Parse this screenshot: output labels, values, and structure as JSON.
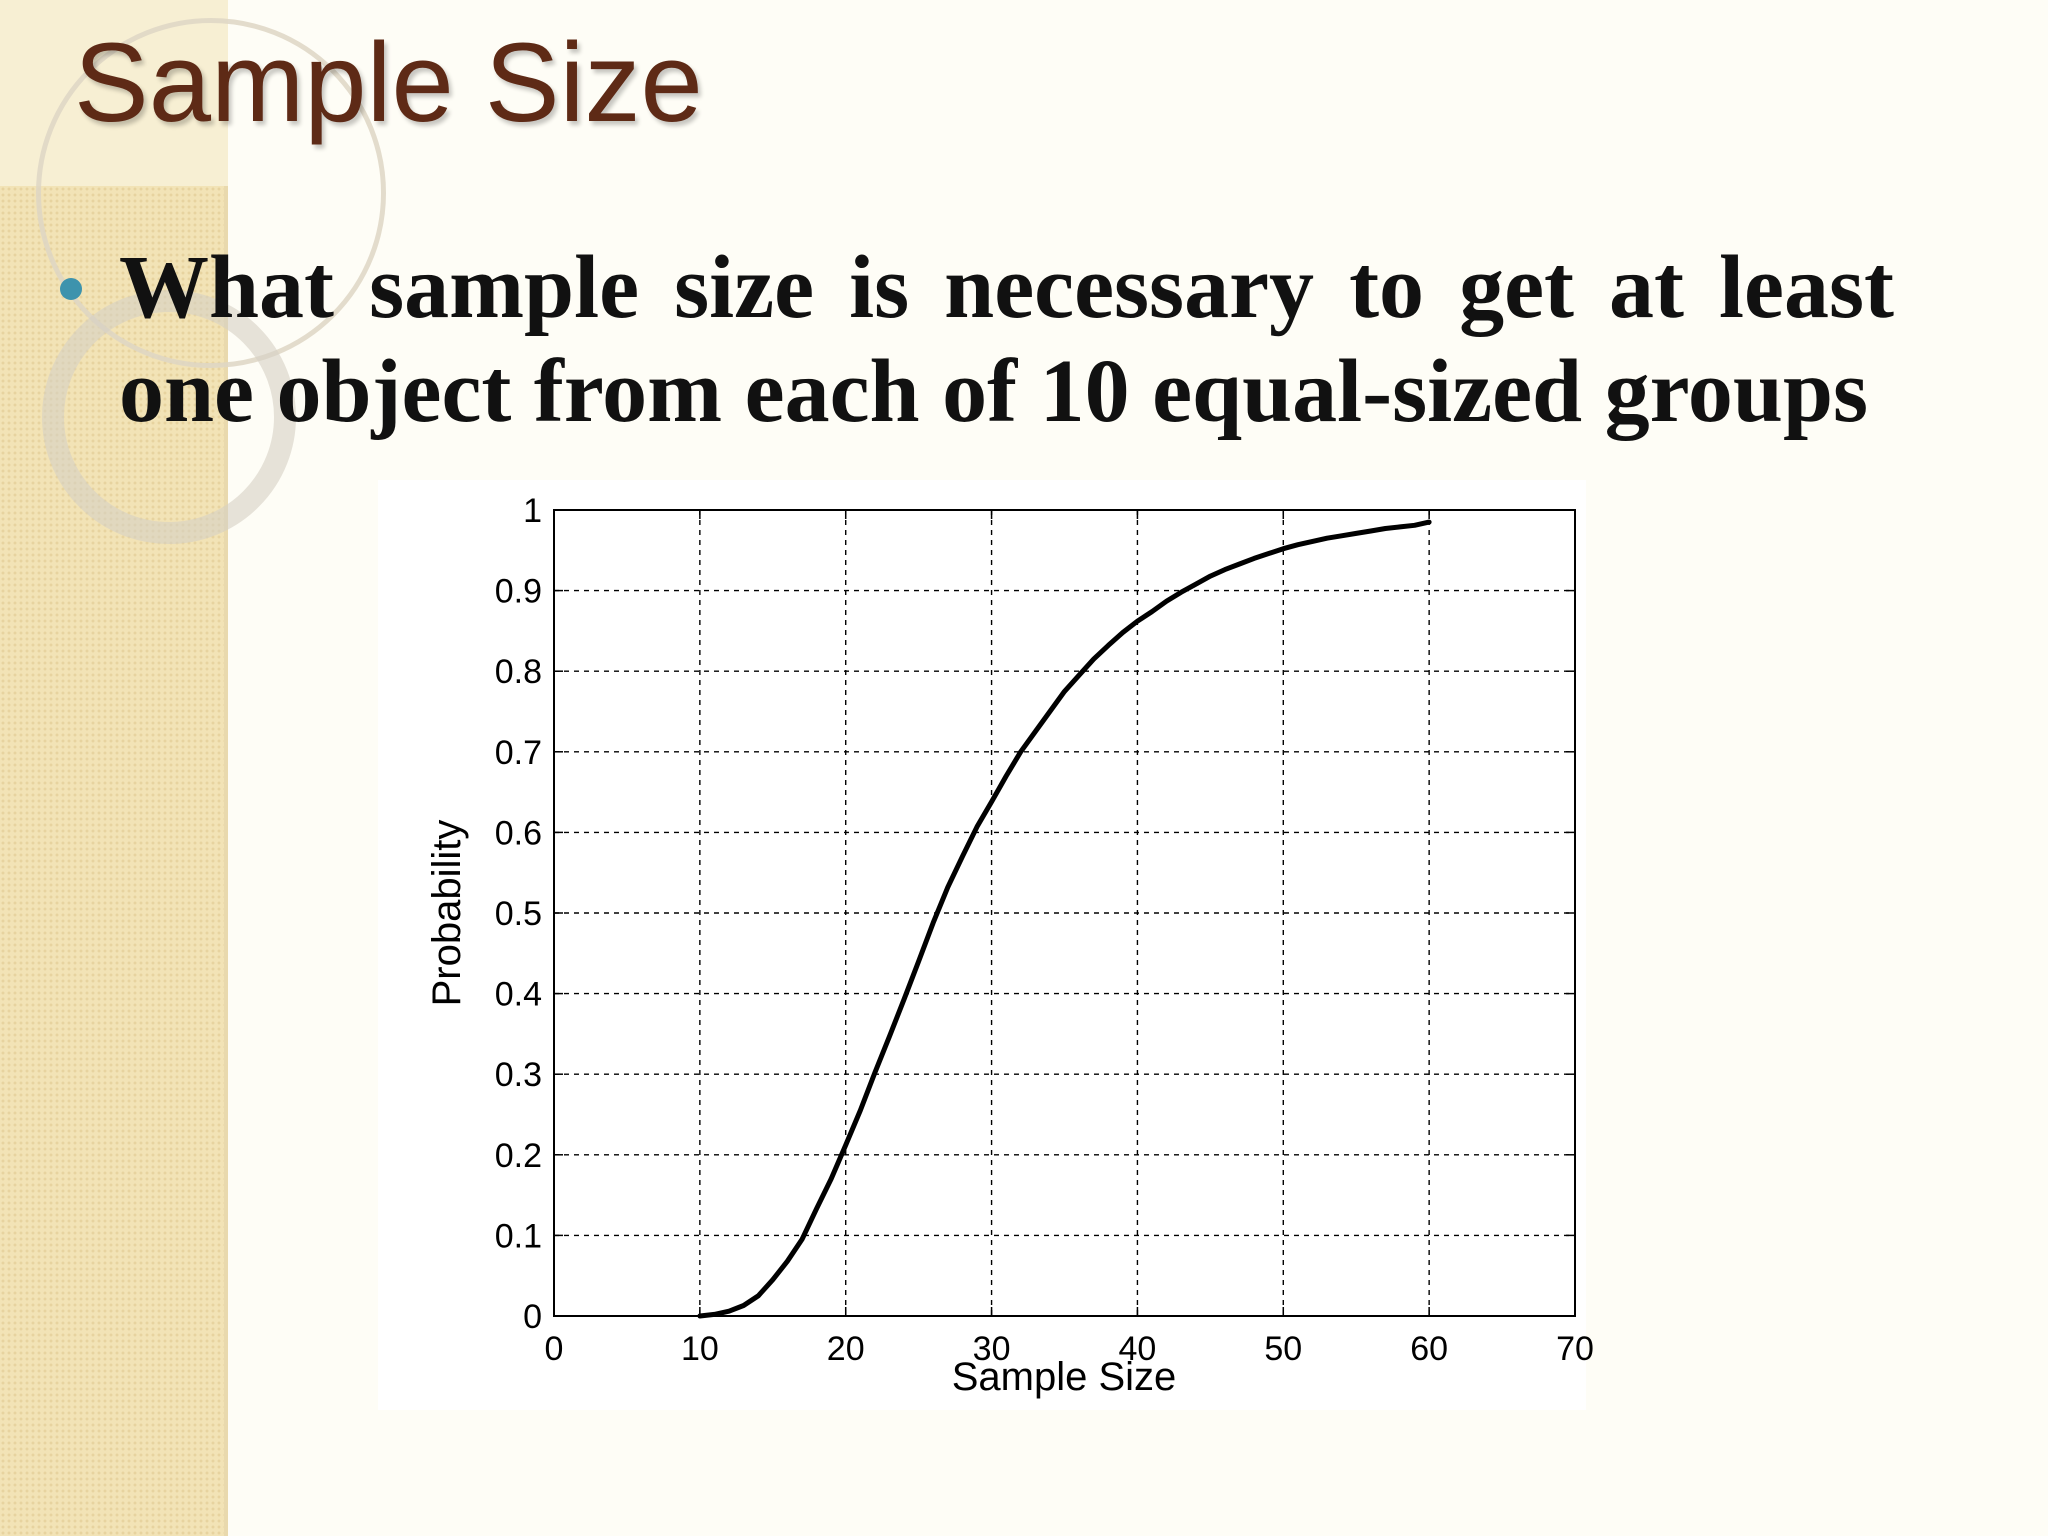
{
  "slide": {
    "title": "Sample Size",
    "bullet": "What sample size is necessary to get at least one object from each of 10 equal-sized groups"
  },
  "colors": {
    "title": "#5e2a16",
    "bullet_dot": "#3d93ad",
    "side_strip": "#f2e3b6",
    "curve": "#000000"
  },
  "chart_data": {
    "type": "line",
    "title": "",
    "xlabel": "Sample Size",
    "ylabel": "Probability",
    "xlim": [
      0,
      70
    ],
    "ylim": [
      0,
      1
    ],
    "x_ticks": [
      0,
      10,
      20,
      30,
      40,
      50,
      60,
      70
    ],
    "y_ticks": [
      0,
      0.1,
      0.2,
      0.3,
      0.4,
      0.5,
      0.6,
      0.7,
      0.8,
      0.9,
      1
    ],
    "y_tick_labels": [
      "0",
      "0.1",
      "0.2",
      "0.3",
      "0.4",
      "0.5",
      "0.6",
      "0.7",
      "0.8",
      "0.9",
      "1"
    ],
    "grid": true,
    "grid_style": "dashed",
    "legend": "none",
    "series": [
      {
        "x": [
          10,
          11,
          12,
          13,
          14,
          15,
          16,
          17,
          18,
          19,
          20,
          21,
          22,
          23,
          24,
          25,
          26,
          27,
          28,
          29,
          30,
          31,
          32,
          33,
          34,
          35,
          36,
          37,
          38,
          39,
          40,
          41,
          42,
          43,
          44,
          45,
          46,
          47,
          48,
          49,
          50,
          51,
          52,
          53,
          54,
          55,
          56,
          57,
          58,
          59,
          60
        ],
        "y": [
          0.0,
          0.002,
          0.006,
          0.013,
          0.025,
          0.045,
          0.068,
          0.095,
          0.133,
          0.17,
          0.212,
          0.255,
          0.302,
          0.347,
          0.393,
          0.44,
          0.488,
          0.532,
          0.57,
          0.607,
          0.638,
          0.67,
          0.7,
          0.725,
          0.75,
          0.775,
          0.795,
          0.815,
          0.832,
          0.848,
          0.862,
          0.874,
          0.887,
          0.898,
          0.908,
          0.918,
          0.926,
          0.933,
          0.94,
          0.946,
          0.952,
          0.957,
          0.961,
          0.965,
          0.968,
          0.971,
          0.974,
          0.977,
          0.979,
          0.981,
          0.985
        ]
      }
    ]
  }
}
